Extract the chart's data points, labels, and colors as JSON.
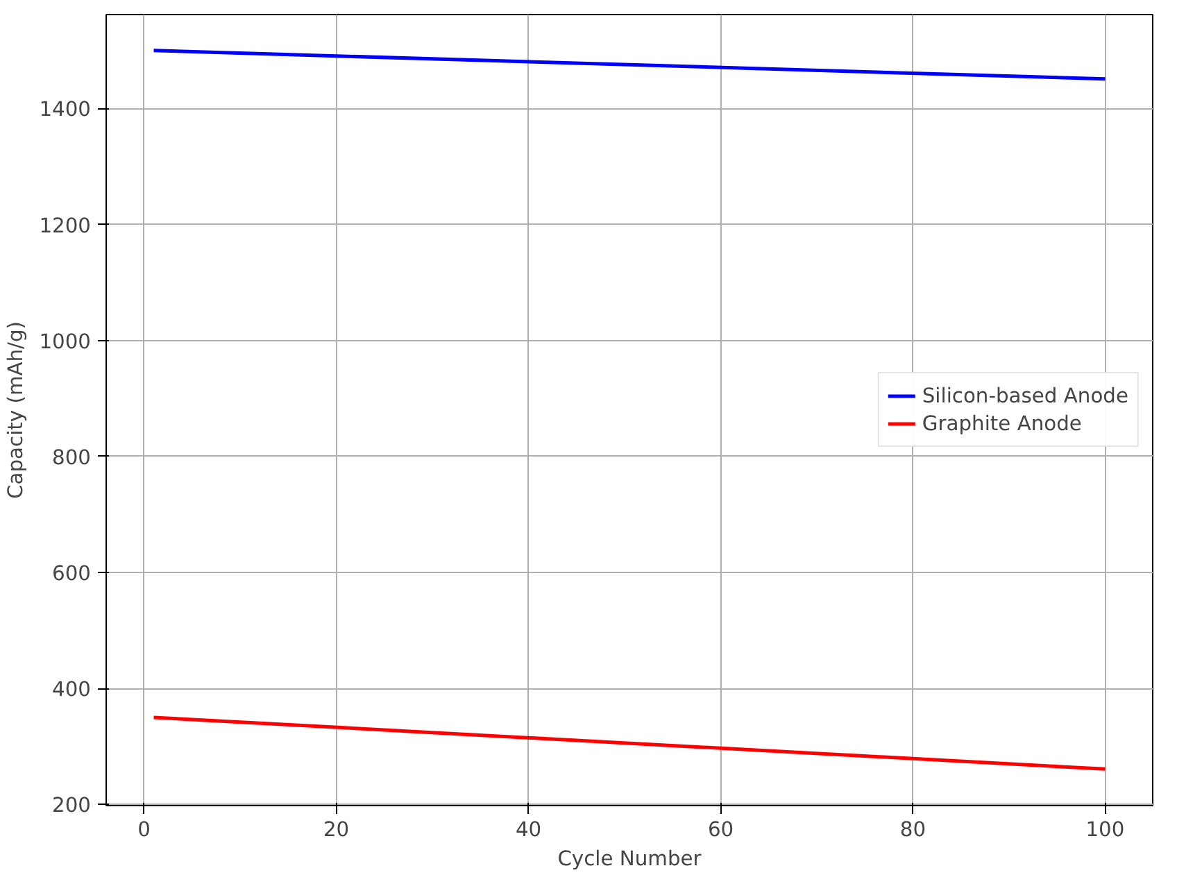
{
  "chart_data": {
    "type": "line",
    "xlabel": "Cycle Number",
    "ylabel": "Capacity (mAh/g)",
    "xlim": [
      -3.95,
      104.95
    ],
    "ylim": [
      198,
      1562
    ],
    "xticks": [
      0,
      20,
      40,
      60,
      80,
      100
    ],
    "yticks": [
      200,
      400,
      600,
      800,
      1000,
      1200,
      1400
    ],
    "grid": true,
    "legend": "right",
    "x": [
      1,
      100
    ],
    "series": [
      {
        "name": "Silicon-based Anode",
        "color": "#0000ff",
        "values": [
          1500,
          1451
        ]
      },
      {
        "name": "Graphite Anode",
        "color": "#ff0000",
        "values": [
          350,
          261
        ]
      }
    ]
  }
}
